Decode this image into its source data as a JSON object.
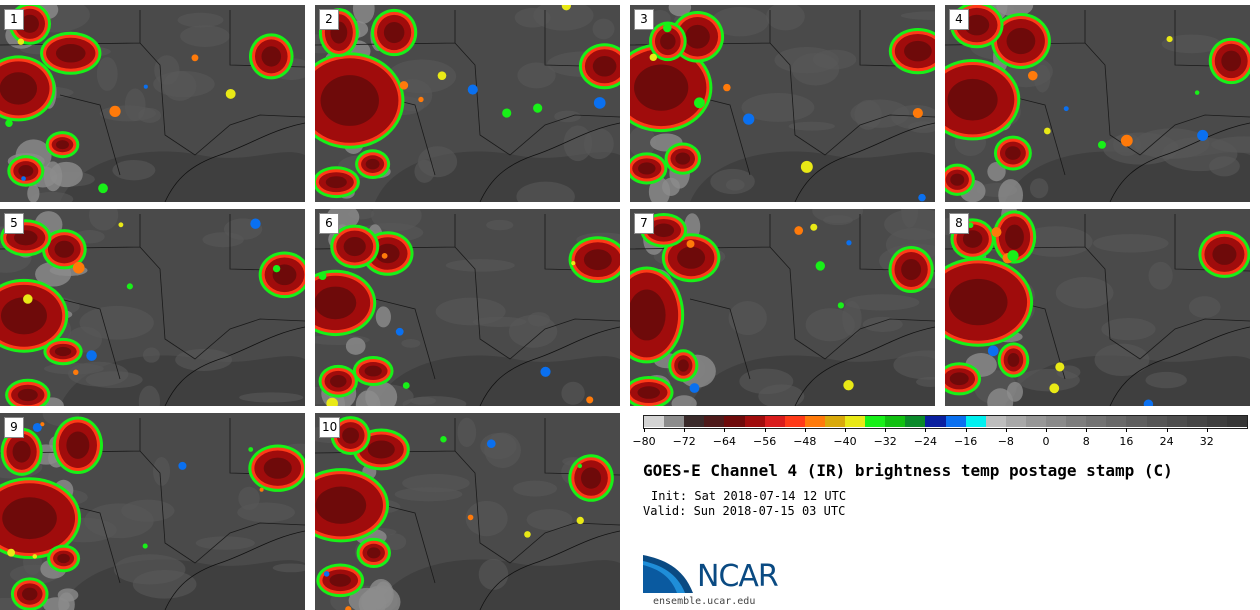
{
  "panels": [
    {
      "label": "1"
    },
    {
      "label": "2"
    },
    {
      "label": "3"
    },
    {
      "label": "4"
    },
    {
      "label": "5"
    },
    {
      "label": "6"
    },
    {
      "label": "7"
    },
    {
      "label": "8"
    },
    {
      "label": "9"
    },
    {
      "label": "10"
    }
  ],
  "legend": {
    "colors": [
      "#d3d3d3",
      "#8c8c8c",
      "#3a2a2a",
      "#4e1a1a",
      "#6e0a0a",
      "#a00c0c",
      "#d91c1c",
      "#ff3a18",
      "#ff7a0a",
      "#d9a90a",
      "#e9e916",
      "#18f018",
      "#10c010",
      "#0a8a2a",
      "#0a20a0",
      "#0a70f0",
      "#00f0f0",
      "#bdbdbd",
      "#a8a8a8",
      "#979797",
      "#8a8a8a",
      "#7d7d7d",
      "#727272",
      "#686868",
      "#5e5e5e",
      "#555555",
      "#4d4d4d",
      "#454545",
      "#3e3e3e",
      "#373737"
    ],
    "tick_labels": [
      "−80",
      "−72",
      "−64",
      "−56",
      "−48",
      "−40",
      "−32",
      "−24",
      "−16",
      "−8",
      "0",
      "8",
      "16",
      "24",
      "32"
    ]
  },
  "title": "GOES-E Channel 4 (IR) brightness temp postage stamp (C)",
  "init": "Init: Sat 2018-07-14 12 UTC",
  "valid": "Valid: Sun 2018-07-15 03 UTC",
  "logo": {
    "text": "NCAR",
    "colors": {
      "blue": "#0a4a82",
      "light": "#1f8ed8"
    }
  },
  "site": "ensemble.ucar.edu"
}
